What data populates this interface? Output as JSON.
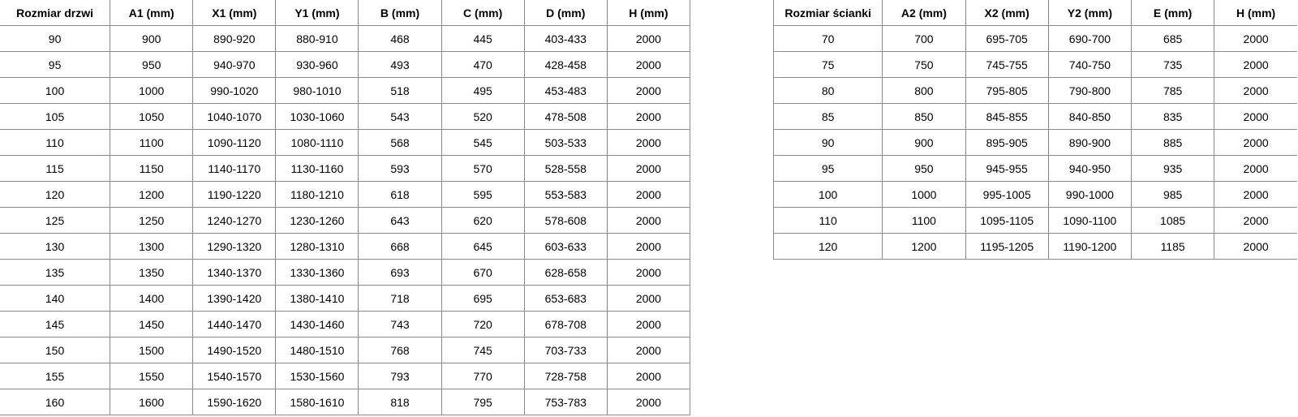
{
  "doors_table": {
    "headers": [
      "Rozmiar drzwi",
      "A1 (mm)",
      "X1 (mm)",
      "Y1 (mm)",
      "B (mm)",
      "C (mm)",
      "D (mm)",
      "H (mm)"
    ],
    "rows": [
      [
        "90",
        "900",
        "890-920",
        "880-910",
        "468",
        "445",
        "403-433",
        "2000"
      ],
      [
        "95",
        "950",
        "940-970",
        "930-960",
        "493",
        "470",
        "428-458",
        "2000"
      ],
      [
        "100",
        "1000",
        "990-1020",
        "980-1010",
        "518",
        "495",
        "453-483",
        "2000"
      ],
      [
        "105",
        "1050",
        "1040-1070",
        "1030-1060",
        "543",
        "520",
        "478-508",
        "2000"
      ],
      [
        "110",
        "1100",
        "1090-1120",
        "1080-1110",
        "568",
        "545",
        "503-533",
        "2000"
      ],
      [
        "115",
        "1150",
        "1140-1170",
        "1130-1160",
        "593",
        "570",
        "528-558",
        "2000"
      ],
      [
        "120",
        "1200",
        "1190-1220",
        "1180-1210",
        "618",
        "595",
        "553-583",
        "2000"
      ],
      [
        "125",
        "1250",
        "1240-1270",
        "1230-1260",
        "643",
        "620",
        "578-608",
        "2000"
      ],
      [
        "130",
        "1300",
        "1290-1320",
        "1280-1310",
        "668",
        "645",
        "603-633",
        "2000"
      ],
      [
        "135",
        "1350",
        "1340-1370",
        "1330-1360",
        "693",
        "670",
        "628-658",
        "2000"
      ],
      [
        "140",
        "1400",
        "1390-1420",
        "1380-1410",
        "718",
        "695",
        "653-683",
        "2000"
      ],
      [
        "145",
        "1450",
        "1440-1470",
        "1430-1460",
        "743",
        "720",
        "678-708",
        "2000"
      ],
      [
        "150",
        "1500",
        "1490-1520",
        "1480-1510",
        "768",
        "745",
        "703-733",
        "2000"
      ],
      [
        "155",
        "1550",
        "1540-1570",
        "1530-1560",
        "793",
        "770",
        "728-758",
        "2000"
      ],
      [
        "160",
        "1600",
        "1590-1620",
        "1580-1610",
        "818",
        "795",
        "753-783",
        "2000"
      ]
    ]
  },
  "wall_table": {
    "headers": [
      "Rozmiar ścianki",
      "A2 (mm)",
      "X2 (mm)",
      "Y2 (mm)",
      "E (mm)",
      "H (mm)"
    ],
    "rows": [
      [
        "70",
        "700",
        "695-705",
        "690-700",
        "685",
        "2000"
      ],
      [
        "75",
        "750",
        "745-755",
        "740-750",
        "735",
        "2000"
      ],
      [
        "80",
        "800",
        "795-805",
        "790-800",
        "785",
        "2000"
      ],
      [
        "85",
        "850",
        "845-855",
        "840-850",
        "835",
        "2000"
      ],
      [
        "90",
        "900",
        "895-905",
        "890-900",
        "885",
        "2000"
      ],
      [
        "95",
        "950",
        "945-955",
        "940-950",
        "935",
        "2000"
      ],
      [
        "100",
        "1000",
        "995-1005",
        "990-1000",
        "985",
        "2000"
      ],
      [
        "110",
        "1100",
        "1095-1105",
        "1090-1100",
        "1085",
        "2000"
      ],
      [
        "120",
        "1200",
        "1195-1205",
        "1190-1200",
        "1185",
        "2000"
      ]
    ]
  }
}
